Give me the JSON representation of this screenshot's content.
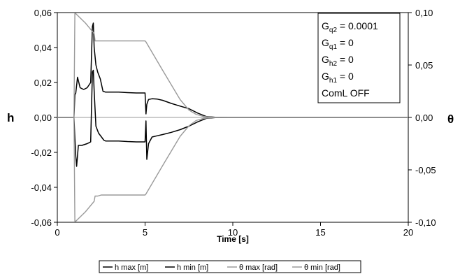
{
  "chart_data": {
    "type": "line",
    "title": "",
    "xlabel": "Time [s]",
    "ylabel_left": "h",
    "ylabel_right": "θ",
    "xlim": [
      0,
      20
    ],
    "ylim_left": [
      -0.06,
      0.06
    ],
    "ylim_right": [
      -0.1,
      0.1
    ],
    "x_ticks": [
      "0",
      "5",
      "10",
      "15",
      "20"
    ],
    "y_left_ticks": [
      "0,06",
      "0,04",
      "0,02",
      "0,00",
      "-0,02",
      "-0,04",
      "-0,06"
    ],
    "y_right_ticks": [
      "0,10",
      "0,05",
      "0,00",
      "-0,05",
      "-0,10"
    ],
    "grid": false,
    "legend_position": "bottom",
    "annotations": {
      "lines": [
        {
          "base": "G",
          "sub": "q2",
          "rest": " = 0.0001"
        },
        {
          "base": "G",
          "sub": "q1",
          "rest": " = 0"
        },
        {
          "base": "G",
          "sub": "h2",
          "rest": " = 0"
        },
        {
          "base": "G",
          "sub": "h1",
          "rest": " = 0"
        },
        {
          "base": "ComL OFF",
          "sub": "",
          "rest": ""
        }
      ]
    },
    "series": [
      {
        "name": "h max [m]",
        "axis": "left",
        "color": "#000000",
        "x": [
          0,
          0.95,
          1.0,
          1.05,
          1.15,
          1.3,
          1.5,
          1.7,
          1.9,
          2.0,
          2.05,
          2.1,
          2.2,
          2.3,
          2.45,
          2.6,
          2.75,
          3.0,
          3.5,
          4.0,
          4.5,
          5.0,
          5.05,
          5.1,
          5.2,
          5.4,
          5.7,
          6.0,
          6.5,
          7.0,
          7.5,
          8.0,
          8.5,
          9.0,
          10,
          15,
          20
        ],
        "y": [
          0,
          0,
          0.013,
          0.014,
          0.023,
          0.017,
          0.016,
          0.017,
          0.02,
          0.052,
          0.054,
          0.04,
          0.03,
          0.026,
          0.022,
          0.015,
          0.0145,
          0.0145,
          0.0145,
          0.0142,
          0.014,
          0.014,
          0.002,
          0.0075,
          0.0103,
          0.0107,
          0.0105,
          0.0098,
          0.008,
          0.0065,
          0.005,
          0.0025,
          0.0005,
          0.0001,
          0,
          0,
          0
        ]
      },
      {
        "name": "h min [m]",
        "axis": "left",
        "color": "#000000",
        "x": [
          0,
          0.95,
          1.0,
          1.05,
          1.1,
          1.2,
          1.4,
          1.7,
          1.9,
          2.0,
          2.05,
          2.1,
          2.2,
          2.35,
          2.5,
          2.65,
          2.75,
          3.0,
          3.5,
          4.0,
          4.5,
          5.0,
          5.05,
          5.1,
          5.2,
          5.4,
          5.7,
          6.0,
          6.5,
          7.0,
          7.5,
          8.0,
          8.5,
          9.0,
          10,
          15,
          20
        ],
        "y": [
          0,
          0,
          -0.012,
          -0.022,
          -0.028,
          -0.016,
          -0.016,
          -0.015,
          -0.014,
          0.026,
          0.027,
          0.015,
          -0.005,
          -0.009,
          -0.011,
          -0.013,
          -0.0135,
          -0.0135,
          -0.0135,
          -0.0138,
          -0.014,
          -0.014,
          -0.002,
          -0.024,
          -0.015,
          -0.0112,
          -0.0105,
          -0.0098,
          -0.0085,
          -0.007,
          -0.005,
          -0.0025,
          -0.0005,
          -0.0001,
          0,
          0,
          0
        ]
      },
      {
        "name": "θ max [rad]",
        "axis": "right",
        "color": "#9a9a9a",
        "x": [
          0,
          0.95,
          1.0,
          1.05,
          1.6,
          2.1,
          2.15,
          2.3,
          2.5,
          3.0,
          4.0,
          5.0,
          5.05,
          6.0,
          7.0,
          7.5,
          7.9,
          8.3,
          8.8,
          9.5,
          20
        ],
        "y": [
          0,
          0,
          0.099,
          0.099,
          0.09,
          0.08,
          0.073,
          0.073,
          0.073,
          0.073,
          0.073,
          0.073,
          0.072,
          0.045,
          0.017,
          0.007,
          0.003,
          0.001,
          0.0002,
          0,
          0
        ]
      },
      {
        "name": "θ min [rad]",
        "axis": "right",
        "color": "#9a9a9a",
        "x": [
          0,
          0.95,
          1.0,
          1.05,
          1.6,
          2.1,
          2.15,
          2.3,
          2.5,
          3.0,
          4.0,
          5.0,
          5.05,
          6.0,
          7.0,
          7.5,
          7.9,
          8.3,
          8.8,
          9.5,
          20
        ],
        "y": [
          0,
          0,
          -0.099,
          -0.099,
          -0.09,
          -0.08,
          -0.075,
          -0.075,
          -0.074,
          -0.074,
          -0.074,
          -0.074,
          -0.073,
          -0.046,
          -0.018,
          -0.008,
          -0.003,
          -0.001,
          -0.0002,
          0,
          0
        ]
      }
    ]
  }
}
